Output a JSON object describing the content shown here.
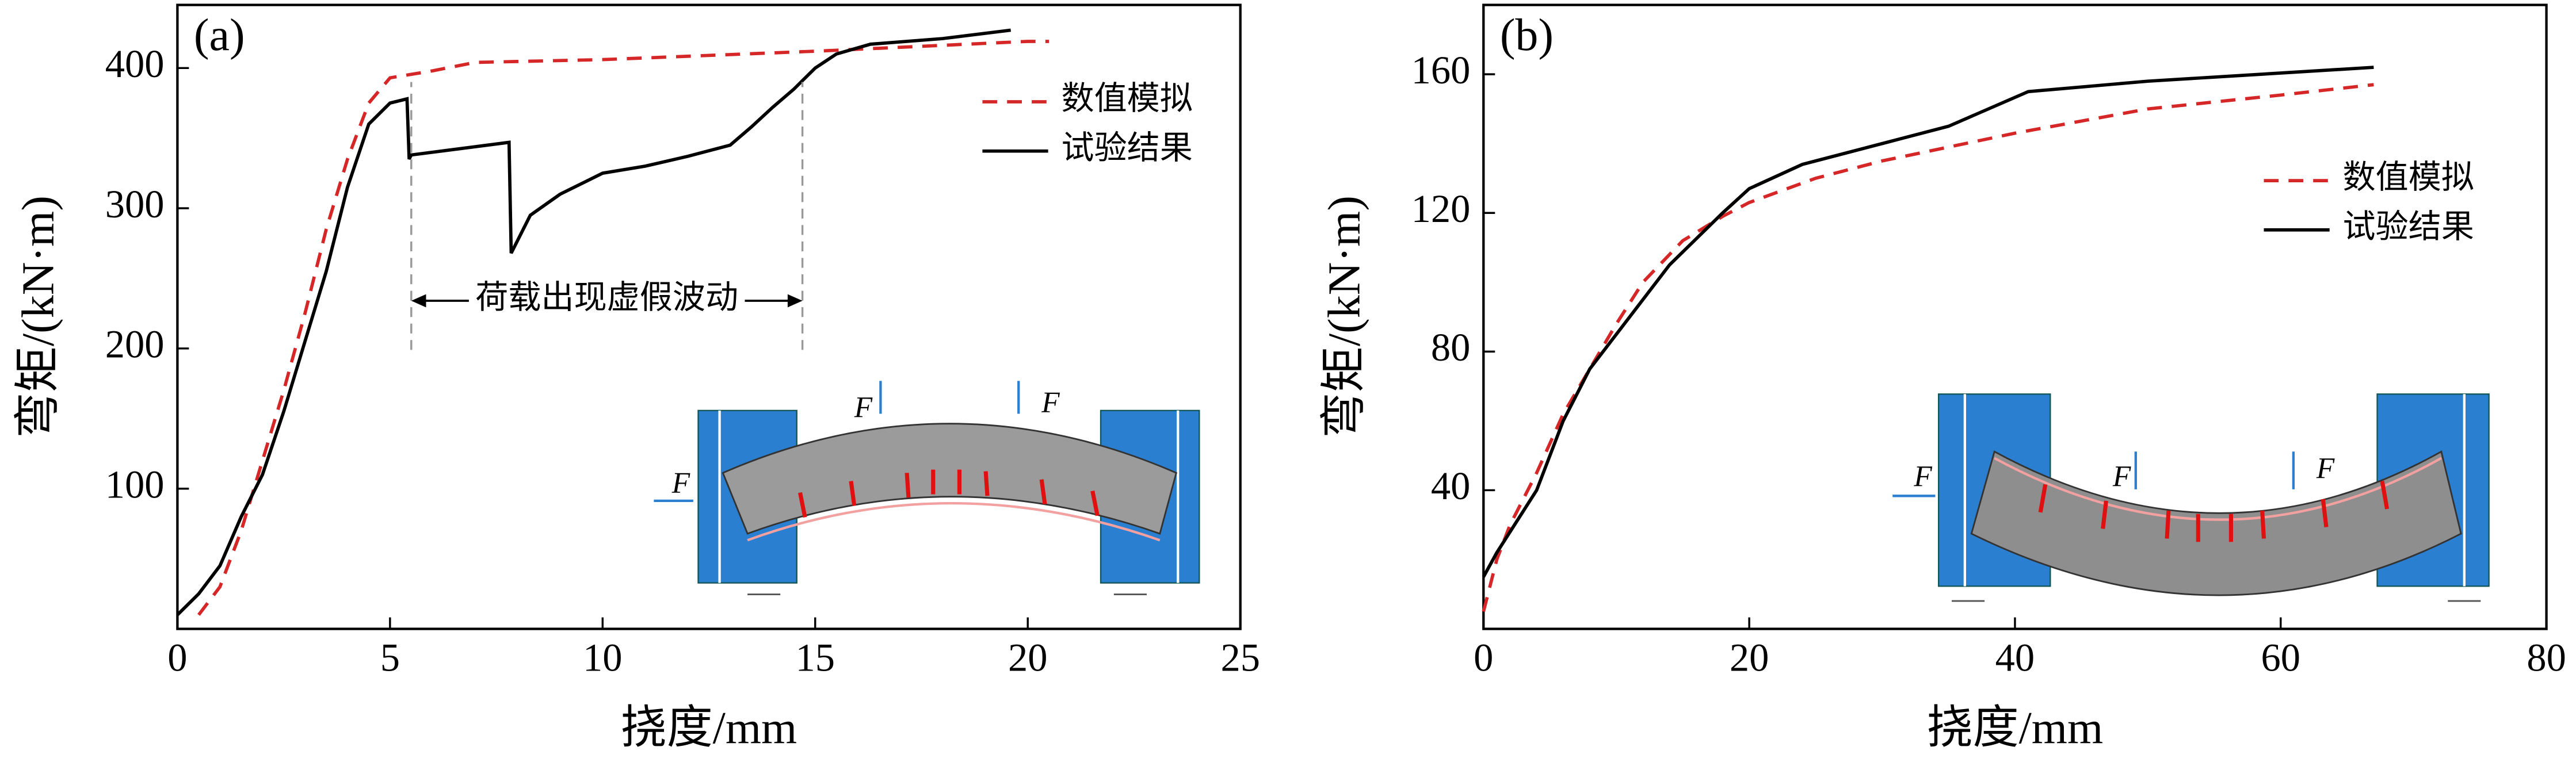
{
  "chart_data": [
    {
      "type": "line",
      "title": "(a)",
      "x_label": "挠度/mm",
      "y_label": "弯矩/(kN·m)",
      "xlim": [
        0,
        25
      ],
      "ylim": [
        0,
        445
      ],
      "xticks": [
        0,
        5,
        10,
        15,
        20,
        25
      ],
      "yticks": [
        100,
        200,
        300,
        400
      ],
      "legend": "upper right",
      "series": [
        {
          "name": "数值模拟",
          "color": "#d62728",
          "dashed": true,
          "x": [
            0.5,
            1,
            1.5,
            2,
            2.5,
            3,
            3.5,
            4,
            4.5,
            5,
            6,
            7,
            10,
            15,
            20,
            20.5
          ],
          "values": [
            10,
            30,
            70,
            120,
            170,
            225,
            285,
            335,
            375,
            393,
            398,
            404,
            406,
            412,
            419,
            419
          ]
        },
        {
          "name": "试验结果",
          "color": "#000000",
          "dashed": false,
          "x": [
            0,
            0.5,
            1,
            1.5,
            2,
            2.5,
            3,
            3.5,
            4,
            4.5,
            5,
            5.4,
            5.45,
            5.5,
            7.8,
            7.85,
            8.3,
            9,
            10,
            11,
            12,
            13,
            13.5,
            14,
            14.5,
            15,
            15.5,
            16.3,
            18,
            19.6
          ],
          "values": [
            10,
            25,
            45,
            80,
            110,
            155,
            205,
            255,
            315,
            360,
            375,
            378,
            335,
            338,
            347,
            268,
            295,
            310,
            325,
            330,
            337,
            345,
            358,
            372,
            385,
            400,
            410,
            417,
            421,
            427
          ]
        }
      ],
      "annotation": {
        "text": "荷载出现虚假波动",
        "x": [
          5.5,
          14.7
        ],
        "y": 234,
        "line_y": [
          199,
          390
        ]
      },
      "inset_labels": [
        "F",
        "F",
        "F"
      ]
    },
    {
      "type": "line",
      "title": "(b)",
      "x_label": "挠度/mm",
      "y_label": "弯矩/(kN·m)",
      "xlim": [
        0,
        80
      ],
      "ylim": [
        0,
        180
      ],
      "xticks": [
        0,
        20,
        40,
        60,
        80
      ],
      "yticks": [
        40,
        80,
        120,
        160
      ],
      "legend": "center right",
      "series": [
        {
          "name": "数值模拟",
          "color": "#d62728",
          "dashed": true,
          "x": [
            0,
            1,
            2,
            4,
            6,
            8,
            10,
            12,
            15,
            18,
            20,
            25,
            30,
            40,
            50,
            60,
            67
          ],
          "values": [
            5,
            20,
            30,
            45,
            62,
            75,
            88,
            100,
            112,
            119,
            123,
            130,
            135,
            143,
            150,
            154,
            157
          ]
        },
        {
          "name": "试验结果",
          "color": "#000000",
          "dashed": false,
          "x": [
            0,
            1,
            2,
            4,
            6,
            8,
            10,
            14,
            18,
            20,
            24,
            30,
            35,
            41,
            50,
            67
          ],
          "values": [
            15,
            22,
            28,
            40,
            60,
            75,
            85,
            105,
            120,
            127,
            134,
            140,
            145,
            155,
            158,
            162
          ]
        }
      ],
      "inset_labels": [
        "F",
        "F",
        "F"
      ]
    }
  ]
}
